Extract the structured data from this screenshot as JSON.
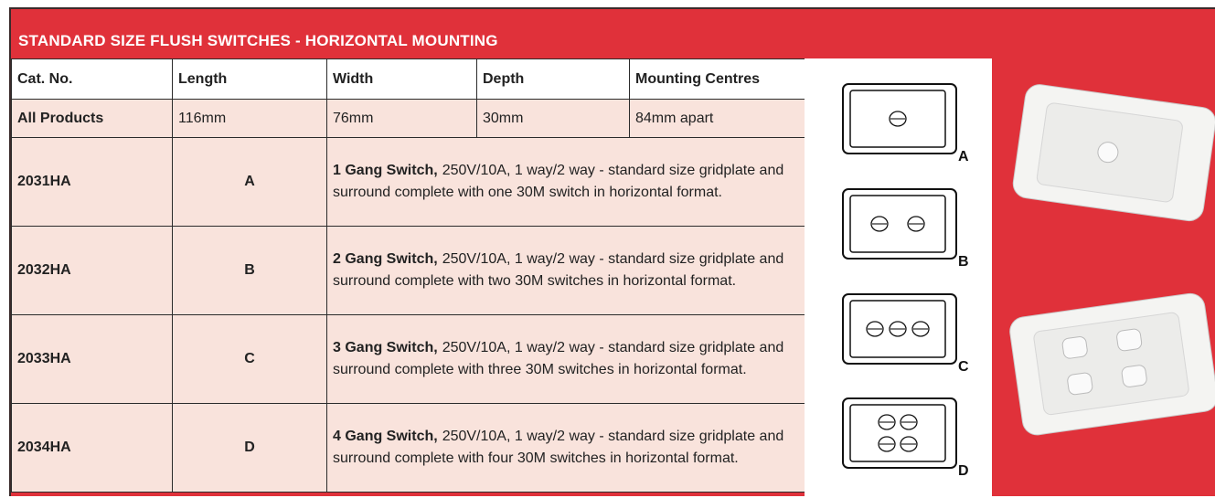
{
  "header": {
    "title": "STANDARD SIZE FLUSH SWITCHES - HORIZONTAL MOUNTING"
  },
  "table": {
    "columns": [
      "Cat. No.",
      "Length",
      "Width",
      "Depth",
      "Mounting Centres"
    ],
    "summary": [
      "All Products",
      "116mm",
      "76mm",
      "30mm",
      "84mm apart"
    ],
    "rows": [
      {
        "cat": "2031HA",
        "letter": "A",
        "name": "1 Gang Switch,",
        "description": "250V/10A, 1 way/2 way - standard size gridplate and surround complete with one 30M switch in horizontal format."
      },
      {
        "cat": "2032HA",
        "letter": "B",
        "name": "2 Gang Switch,",
        "description": "250V/10A, 1 way/2 way - standard size gridplate and surround complete with two 30M switches in horizontal format."
      },
      {
        "cat": "2033HA",
        "letter": "C",
        "name": "3 Gang Switch,",
        "description": "250V/10A, 1 way/2 way - standard size gridplate and surround complete with three 30M switches in horizontal format."
      },
      {
        "cat": "2034HA",
        "letter": "D",
        "name": "4 Gang Switch,",
        "description": "250V/10A, 1 way/2 way - standard size gridplate and surround complete with four 30M switches in horizontal format."
      }
    ]
  },
  "diagram_labels": [
    "A",
    "B",
    "C",
    "D"
  ]
}
